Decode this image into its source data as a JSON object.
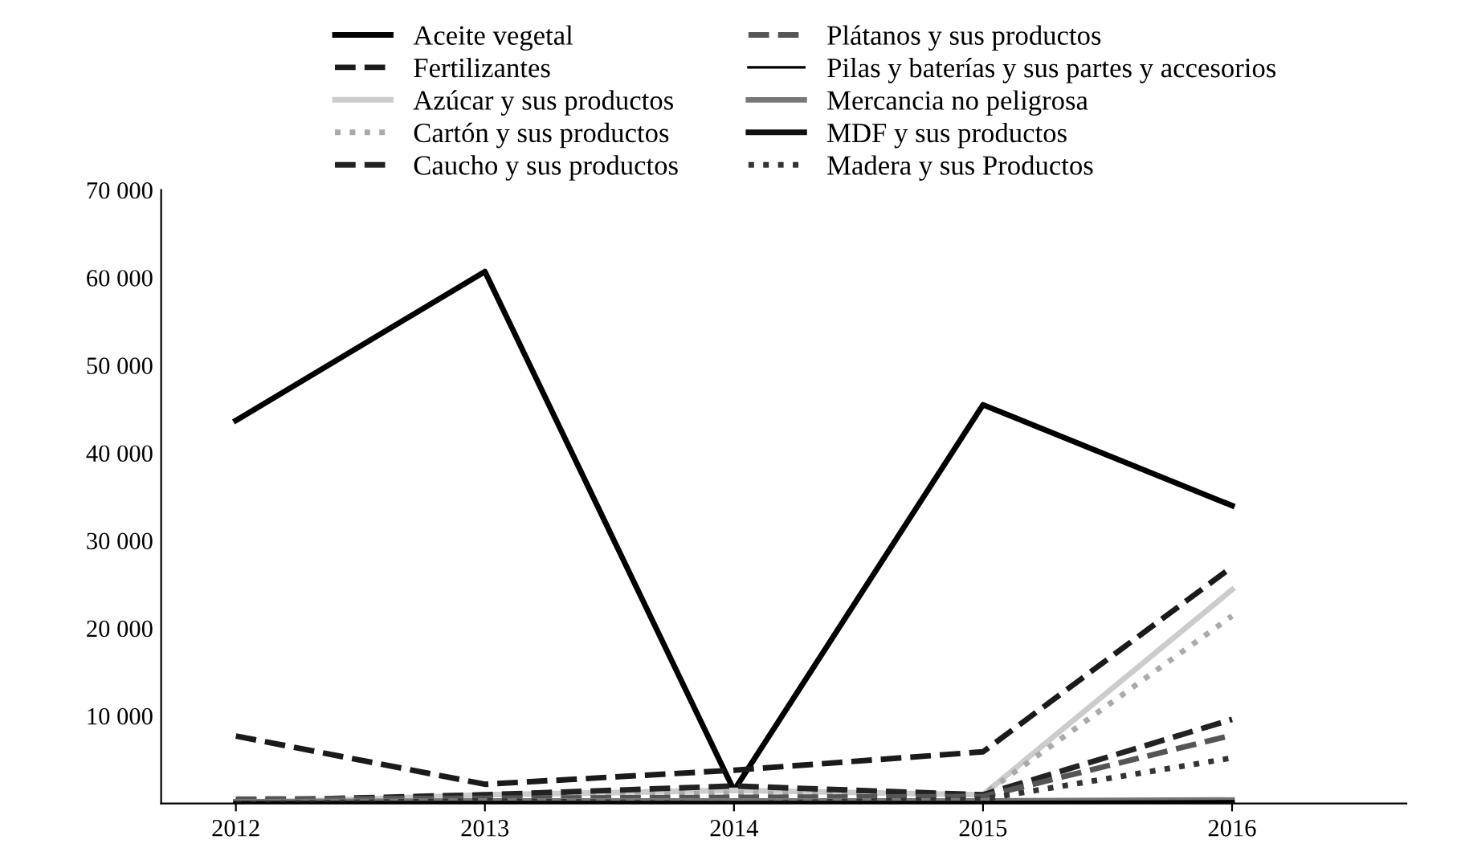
{
  "chart_data": {
    "type": "line",
    "categories": [
      "2012",
      "2013",
      "2014",
      "2015",
      "2016"
    ],
    "series": [
      {
        "name": "Aceite vegetal",
        "color": "#000000",
        "line_style": "solid",
        "values": [
          43700,
          60700,
          1500,
          45500,
          34000
        ]
      },
      {
        "name": "Fertilizantes",
        "color": "#1a1a1a",
        "line_style": "dashed",
        "values": [
          7700,
          2200,
          3800,
          5900,
          27000
        ]
      },
      {
        "name": "Azúcar y sus productos",
        "color": "#cccccc",
        "line_style": "solid",
        "values": [
          0,
          1000,
          1500,
          1000,
          24400
        ]
      },
      {
        "name": "Cartón y sus productos",
        "color": "#aaaaaa",
        "line_style": "dotted",
        "values": [
          0,
          800,
          1200,
          1000,
          21400
        ]
      },
      {
        "name": "Caucho y sus productos",
        "color": "#222222",
        "line_style": "dashed",
        "values": [
          300,
          1000,
          2000,
          1000,
          9600
        ]
      },
      {
        "name": "Plátanos y sus productos",
        "color": "#555555",
        "line_style": "dashed",
        "values": [
          500,
          600,
          700,
          800,
          7800
        ]
      },
      {
        "name": "Pilas y baterías y sus partes y accesorios",
        "color": "#000000",
        "line_style": "solid",
        "values": [
          0,
          100,
          100,
          100,
          200
        ]
      },
      {
        "name": "Mercancia no peligrosa",
        "color": "#777777",
        "line_style": "solid",
        "values": [
          200,
          300,
          300,
          300,
          400
        ]
      },
      {
        "name": "MDF y sus productos",
        "color": "#111111",
        "line_style": "solid",
        "values": [
          0,
          0,
          0,
          0,
          100
        ]
      },
      {
        "name": "Madera y sus Productos",
        "color": "#333333",
        "line_style": "dotted",
        "values": [
          0,
          300,
          0,
          500,
          5200
        ]
      }
    ],
    "ylim": [
      0,
      70000
    ],
    "yticks": [
      {
        "value": 0,
        "label": null
      },
      {
        "value": 10000,
        "label": "10 000"
      },
      {
        "value": 20000,
        "label": "20 000"
      },
      {
        "value": 30000,
        "label": "30 000"
      },
      {
        "value": 40000,
        "label": "40 000"
      },
      {
        "value": 50000,
        "label": "50 000"
      },
      {
        "value": 60000,
        "label": "60 000"
      },
      {
        "value": 70000,
        "label": "70 000"
      }
    ],
    "grid": false,
    "legend": "top"
  }
}
